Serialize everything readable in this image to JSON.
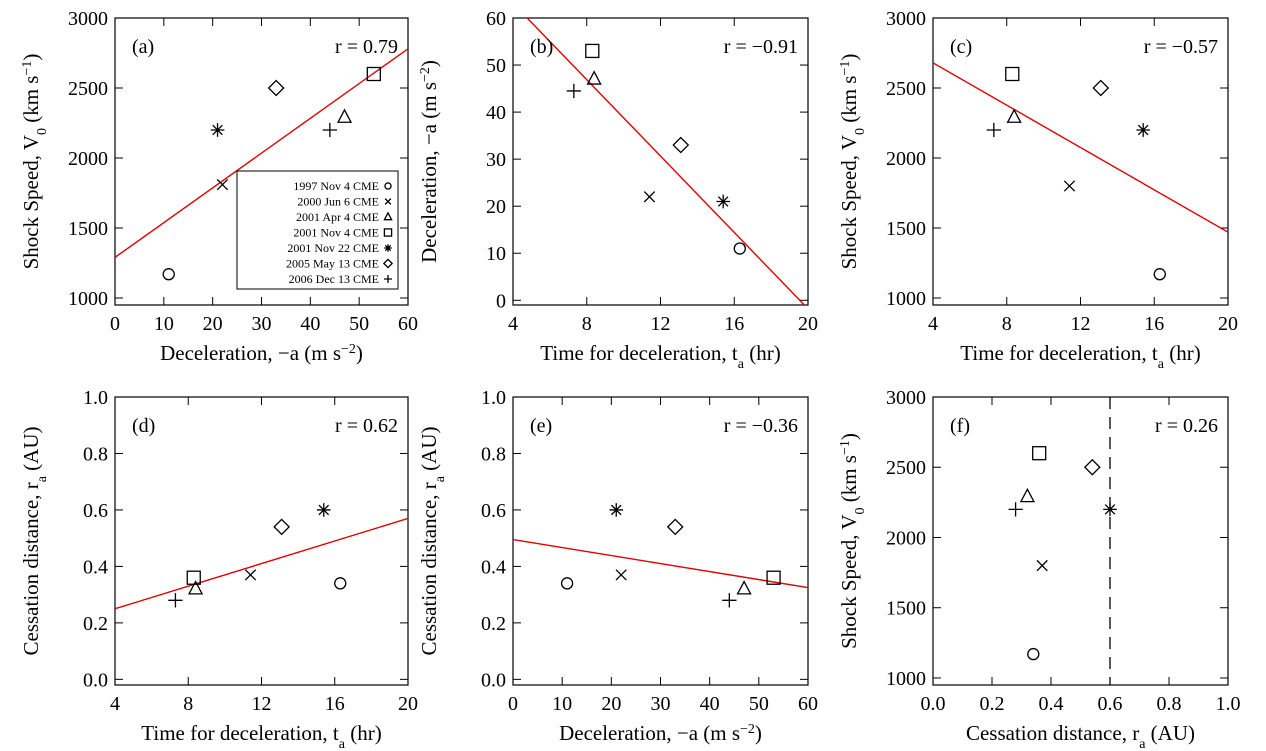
{
  "chart_data": [
    {
      "type": "scatter",
      "panel_label": "(a)",
      "r_text": "r = 0.79",
      "xlabel_parts": [
        "Deceleration, −a (m s",
        "−2",
        ")"
      ],
      "ylabel_parts": [
        "Shock Speed, V",
        "0",
        " (km s",
        "−1",
        ")"
      ],
      "xlim": [
        0,
        60
      ],
      "ylim": [
        950,
        3000
      ],
      "xticks": [
        0,
        10,
        20,
        30,
        40,
        50,
        60
      ],
      "yticks": [
        1000,
        1500,
        2000,
        2500,
        3000
      ],
      "points": [
        {
          "event": "1997 Nov 4 CME",
          "symbol": "circle",
          "x": 11,
          "y": 1170
        },
        {
          "event": "2000 Jun 6 CME",
          "symbol": "x",
          "x": 22,
          "y": 1810
        },
        {
          "event": "2001 Apr 4 CME",
          "symbol": "triangle",
          "x": 47,
          "y": 2290
        },
        {
          "event": "2001 Nov 4 CME",
          "symbol": "square",
          "x": 53,
          "y": 2600
        },
        {
          "event": "2001 Nov 22 CME",
          "symbol": "asterisk",
          "x": 21,
          "y": 2200
        },
        {
          "event": "2005 May 13 CME",
          "symbol": "diamond",
          "x": 33,
          "y": 2500
        },
        {
          "event": "2006 Dec 13 CME",
          "symbol": "plus",
          "x": 44,
          "y": 2200
        }
      ],
      "fit_line": {
        "x": [
          0,
          60
        ],
        "y": [
          1290,
          2780
        ]
      },
      "legend": {
        "placement": "bottom-right",
        "entries": [
          {
            "label": "1997 Nov 4 CME",
            "symbol": "circle"
          },
          {
            "label": "2000 Jun 6 CME",
            "symbol": "x"
          },
          {
            "label": "2001 Apr 4 CME",
            "symbol": "triangle"
          },
          {
            "label": "2001 Nov 4 CME",
            "symbol": "square"
          },
          {
            "label": "2001 Nov 22 CME",
            "symbol": "asterisk"
          },
          {
            "label": "2005 May 13 CME",
            "symbol": "diamond"
          },
          {
            "label": "2006 Dec 13 CME",
            "symbol": "plus"
          }
        ]
      }
    },
    {
      "type": "scatter",
      "panel_label": "(b)",
      "r_text": "r = −0.91",
      "xlabel_parts": [
        "Time for deceleration, t",
        "a",
        " (hr)"
      ],
      "ylabel_parts": [
        "Deceleration, −a (m s",
        "−2",
        ")"
      ],
      "xlim": [
        4,
        20
      ],
      "ylim": [
        -1,
        60
      ],
      "xticks": [
        4,
        8,
        12,
        16,
        20
      ],
      "yticks": [
        0,
        10,
        20,
        30,
        40,
        50,
        60
      ],
      "points": [
        {
          "event": "1997 Nov 4 CME",
          "symbol": "circle",
          "x": 16.3,
          "y": 11
        },
        {
          "event": "2000 Jun 6 CME",
          "symbol": "x",
          "x": 11.4,
          "y": 22
        },
        {
          "event": "2001 Apr 4 CME",
          "symbol": "triangle",
          "x": 8.4,
          "y": 47
        },
        {
          "event": "2001 Nov 4 CME",
          "symbol": "square",
          "x": 8.3,
          "y": 53
        },
        {
          "event": "2001 Nov 22 CME",
          "symbol": "asterisk",
          "x": 15.4,
          "y": 21
        },
        {
          "event": "2005 May 13 CME",
          "symbol": "diamond",
          "x": 13.1,
          "y": 33
        },
        {
          "event": "2006 Dec 13 CME",
          "symbol": "plus",
          "x": 7.3,
          "y": 44.5
        }
      ],
      "fit_line": {
        "x": [
          4.4,
          19.8
        ],
        "y": [
          61.5,
          -1
        ]
      }
    },
    {
      "type": "scatter",
      "panel_label": "(c)",
      "r_text": "r = −0.57",
      "xlabel_parts": [
        "Time for deceleration, t",
        "a",
        " (hr)"
      ],
      "ylabel_parts": [
        "Shock Speed, V",
        "0",
        " (km s",
        "−1",
        ")"
      ],
      "xlim": [
        4,
        20
      ],
      "ylim": [
        950,
        3000
      ],
      "xticks": [
        4,
        8,
        12,
        16,
        20
      ],
      "yticks": [
        1000,
        1500,
        2000,
        2500,
        3000
      ],
      "points": [
        {
          "event": "1997 Nov 4 CME",
          "symbol": "circle",
          "x": 16.3,
          "y": 1170
        },
        {
          "event": "2000 Jun 6 CME",
          "symbol": "x",
          "x": 11.4,
          "y": 1800
        },
        {
          "event": "2001 Apr 4 CME",
          "symbol": "triangle",
          "x": 8.4,
          "y": 2290
        },
        {
          "event": "2001 Nov 4 CME",
          "symbol": "square",
          "x": 8.3,
          "y": 2600
        },
        {
          "event": "2001 Nov 22 CME",
          "symbol": "asterisk",
          "x": 15.4,
          "y": 2200
        },
        {
          "event": "2005 May 13 CME",
          "symbol": "diamond",
          "x": 13.1,
          "y": 2500
        },
        {
          "event": "2006 Dec 13 CME",
          "symbol": "plus",
          "x": 7.3,
          "y": 2200
        }
      ],
      "fit_line": {
        "x": [
          4,
          20
        ],
        "y": [
          2680,
          1470
        ]
      }
    },
    {
      "type": "scatter",
      "panel_label": "(d)",
      "r_text": "r = 0.62",
      "xlabel_parts": [
        "Time for deceleration, t",
        "a",
        " (hr)"
      ],
      "ylabel_parts": [
        "Cessation distance, r",
        "a",
        " (AU)"
      ],
      "xlim": [
        4,
        20
      ],
      "ylim": [
        -0.02,
        1.0
      ],
      "xticks": [
        4,
        8,
        12,
        16,
        20
      ],
      "yticks": [
        0.0,
        0.2,
        0.4,
        0.6,
        0.8,
        1.0
      ],
      "tick_format": 1,
      "points": [
        {
          "event": "1997 Nov 4 CME",
          "symbol": "circle",
          "x": 16.3,
          "y": 0.34
        },
        {
          "event": "2000 Jun 6 CME",
          "symbol": "x",
          "x": 11.4,
          "y": 0.37
        },
        {
          "event": "2001 Apr 4 CME",
          "symbol": "triangle",
          "x": 8.4,
          "y": 0.32
        },
        {
          "event": "2001 Nov 4 CME",
          "symbol": "square",
          "x": 8.3,
          "y": 0.36
        },
        {
          "event": "2001 Nov 22 CME",
          "symbol": "asterisk",
          "x": 15.4,
          "y": 0.6
        },
        {
          "event": "2005 May 13 CME",
          "symbol": "diamond",
          "x": 13.1,
          "y": 0.54
        },
        {
          "event": "2006 Dec 13 CME",
          "symbol": "plus",
          "x": 7.3,
          "y": 0.28
        }
      ],
      "fit_line": {
        "x": [
          4,
          20
        ],
        "y": [
          0.25,
          0.57
        ]
      }
    },
    {
      "type": "scatter",
      "panel_label": "(e)",
      "r_text": "r = −0.36",
      "xlabel_parts": [
        "Deceleration, −a (m s",
        "−2",
        ")"
      ],
      "ylabel_parts": [
        "Cessation distance, r",
        "a",
        " (AU)"
      ],
      "xlim": [
        0,
        60
      ],
      "ylim": [
        -0.02,
        1.0
      ],
      "xticks": [
        0,
        10,
        20,
        30,
        40,
        50,
        60
      ],
      "yticks": [
        0.0,
        0.2,
        0.4,
        0.6,
        0.8,
        1.0
      ],
      "tick_format": 1,
      "points": [
        {
          "event": "1997 Nov 4 CME",
          "symbol": "circle",
          "x": 11,
          "y": 0.34
        },
        {
          "event": "2000 Jun 6 CME",
          "symbol": "x",
          "x": 22,
          "y": 0.37
        },
        {
          "event": "2001 Apr 4 CME",
          "symbol": "triangle",
          "x": 47,
          "y": 0.32
        },
        {
          "event": "2001 Nov 4 CME",
          "symbol": "square",
          "x": 53,
          "y": 0.36
        },
        {
          "event": "2001 Nov 22 CME",
          "symbol": "asterisk",
          "x": 21,
          "y": 0.6
        },
        {
          "event": "2005 May 13 CME",
          "symbol": "diamond",
          "x": 33,
          "y": 0.54
        },
        {
          "event": "2006 Dec 13 CME",
          "symbol": "plus",
          "x": 44,
          "y": 0.28
        }
      ],
      "fit_line": {
        "x": [
          0,
          60
        ],
        "y": [
          0.495,
          0.325
        ]
      }
    },
    {
      "type": "scatter",
      "panel_label": "(f)",
      "r_text": "r = 0.26",
      "xlabel_parts": [
        "Cessation distance, r",
        "a",
        " (AU)"
      ],
      "ylabel_parts": [
        "Shock Speed, V",
        "0",
        " (km s",
        "−1",
        ")"
      ],
      "xlim": [
        0.0,
        1.0
      ],
      "ylim": [
        950,
        3000
      ],
      "xticks": [
        0.0,
        0.2,
        0.4,
        0.6,
        0.8,
        1.0
      ],
      "yticks": [
        1000,
        1500,
        2000,
        2500,
        3000
      ],
      "xtick_format": 1,
      "points": [
        {
          "event": "1997 Nov 4 CME",
          "symbol": "circle",
          "x": 0.34,
          "y": 1170
        },
        {
          "event": "2000 Jun 6 CME",
          "symbol": "x",
          "x": 0.37,
          "y": 1800
        },
        {
          "event": "2001 Apr 4 CME",
          "symbol": "triangle",
          "x": 0.32,
          "y": 2290
        },
        {
          "event": "2001 Nov 4 CME",
          "symbol": "square",
          "x": 0.36,
          "y": 2600
        },
        {
          "event": "2001 Nov 22 CME",
          "symbol": "asterisk",
          "x": 0.6,
          "y": 2200
        },
        {
          "event": "2005 May 13 CME",
          "symbol": "diamond",
          "x": 0.54,
          "y": 2500
        },
        {
          "event": "2006 Dec 13 CME",
          "symbol": "plus",
          "x": 0.28,
          "y": 2200
        }
      ],
      "vline": {
        "x": 0.6,
        "style": "dashed"
      }
    }
  ],
  "colors": {
    "fit_line": "#e00000",
    "axes": "#000000",
    "markers": "#000000"
  }
}
